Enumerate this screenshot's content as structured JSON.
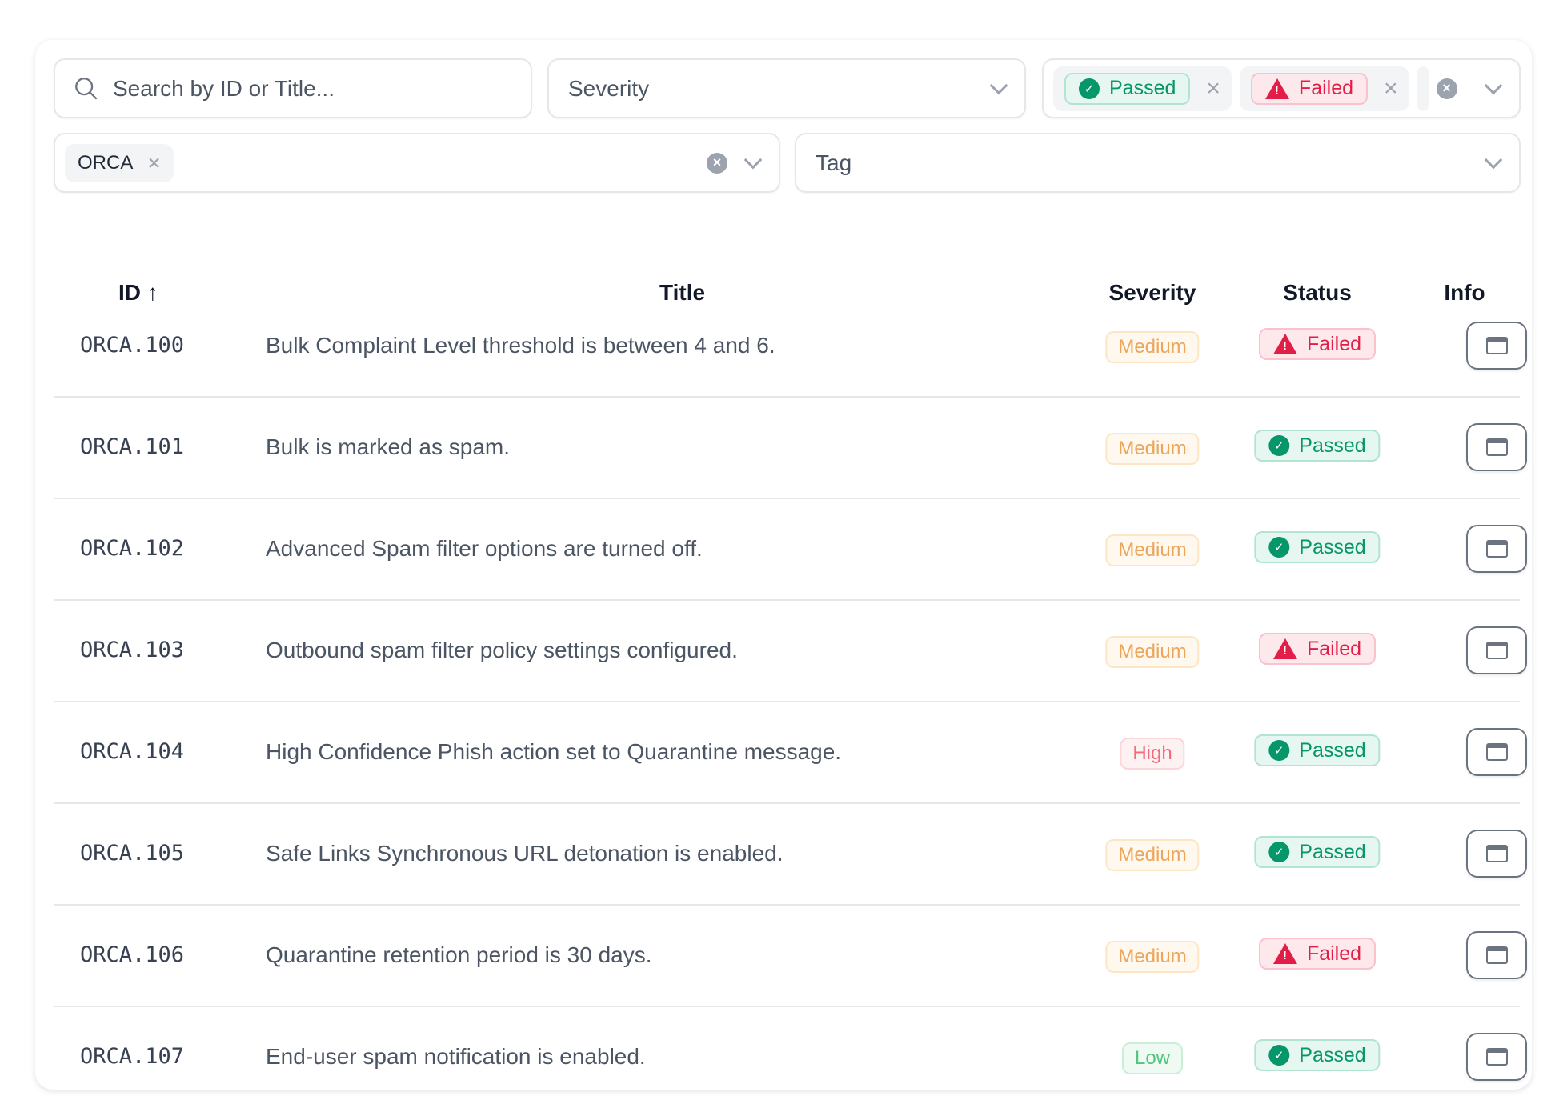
{
  "filters": {
    "search_placeholder": "Search by ID or Title...",
    "severity_placeholder": "Severity",
    "status_selected": [
      {
        "label": "Passed",
        "type": "passed"
      },
      {
        "label": "Failed",
        "type": "failed"
      }
    ],
    "framework_selected": [
      "ORCA"
    ],
    "tag_placeholder": "Tag"
  },
  "table": {
    "headers": {
      "id": "ID",
      "title": "Title",
      "severity": "Severity",
      "status": "Status",
      "info": "Info"
    },
    "sort": {
      "column": "id",
      "direction": "ascending"
    },
    "rows": [
      {
        "id": "ORCA.100",
        "title": "Bulk Complaint Level threshold is between 4 and 6.",
        "severity": "Medium",
        "status": "Failed"
      },
      {
        "id": "ORCA.101",
        "title": "Bulk is marked as spam.",
        "severity": "Medium",
        "status": "Passed"
      },
      {
        "id": "ORCA.102",
        "title": "Advanced Spam filter options are turned off.",
        "severity": "Medium",
        "status": "Passed"
      },
      {
        "id": "ORCA.103",
        "title": "Outbound spam filter policy settings configured.",
        "severity": "Medium",
        "status": "Failed"
      },
      {
        "id": "ORCA.104",
        "title": "High Confidence Phish action set to Quarantine message.",
        "severity": "High",
        "status": "Passed"
      },
      {
        "id": "ORCA.105",
        "title": "Safe Links Synchronous URL detonation is enabled.",
        "severity": "Medium",
        "status": "Passed"
      },
      {
        "id": "ORCA.106",
        "title": "Quarantine retention period is 30 days.",
        "severity": "Medium",
        "status": "Failed"
      },
      {
        "id": "ORCA.107",
        "title": "End-user spam notification is enabled.",
        "severity": "Low",
        "status": "Passed"
      }
    ]
  },
  "colors": {
    "passed": "#059669",
    "failed": "#e11d48",
    "medium": "#eca55a",
    "high": "#f26b7b",
    "low": "#52c57e"
  }
}
